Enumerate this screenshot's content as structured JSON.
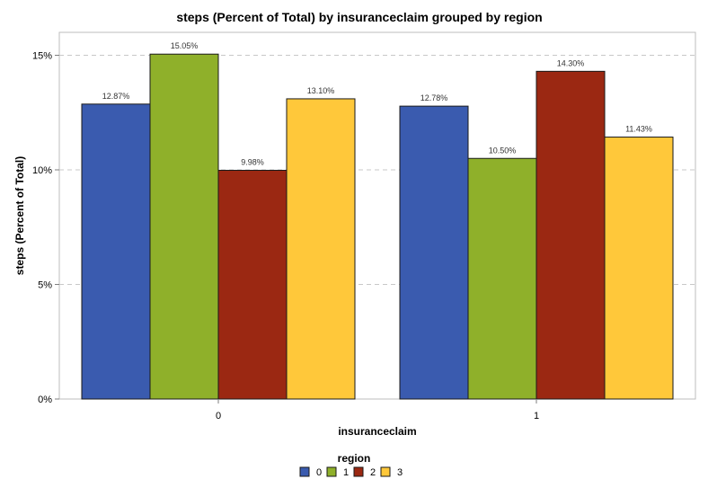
{
  "chart_data": {
    "type": "bar",
    "title": "steps (Percent of Total) by insuranceclaim grouped by region",
    "xlabel": "insuranceclaim",
    "ylabel": "steps (Percent of Total)",
    "categories": [
      "0",
      "1"
    ],
    "series": [
      {
        "name": "0",
        "values": [
          12.87,
          12.78
        ],
        "labels": [
          "12.87%",
          "12.78%"
        ],
        "color": "#3A5BAF"
      },
      {
        "name": "1",
        "values": [
          15.05,
          10.5
        ],
        "labels": [
          "15.05%",
          "10.50%"
        ],
        "color": "#8FB02A"
      },
      {
        "name": "2",
        "values": [
          9.98,
          14.3
        ],
        "labels": [
          "9.98%",
          "14.30%"
        ],
        "color": "#9B2812"
      },
      {
        "name": "3",
        "values": [
          13.1,
          11.43
        ],
        "labels": [
          "13.10%",
          "11.43%"
        ],
        "color": "#FFC83A"
      }
    ],
    "ylim": [
      0,
      16
    ],
    "yticks": [
      0,
      5,
      10,
      15
    ],
    "ytick_labels": [
      "0%",
      "5%",
      "10%",
      "15%"
    ],
    "grid": true,
    "legend": {
      "title": "region",
      "position": "bottom"
    }
  }
}
